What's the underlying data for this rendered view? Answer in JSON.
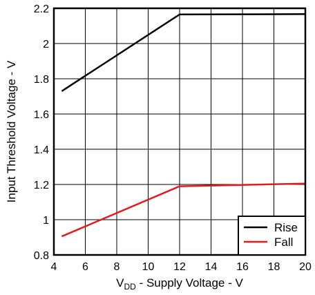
{
  "chart_data": {
    "type": "line",
    "title": "",
    "xlabel_main": "V",
    "xlabel_sub": "DD",
    "xlabel_rest": " - Supply Voltage - V",
    "ylabel": "Input Threshold Voltage -  V",
    "xlim": [
      4,
      20
    ],
    "ylim": [
      0.8,
      2.2
    ],
    "x_ticks": [
      4,
      6,
      8,
      10,
      12,
      14,
      16,
      18,
      20
    ],
    "y_ticks": [
      0.8,
      1,
      1.2,
      1.4,
      1.6,
      1.8,
      2,
      2.2
    ],
    "x_tick_labels": [
      "4",
      "6",
      "8",
      "10",
      "12",
      "14",
      "16",
      "18",
      "20"
    ],
    "y_tick_labels": [
      "0.8",
      "1",
      "1.2",
      "1.4",
      "1.6",
      "1.8",
      "2",
      "2.2"
    ],
    "grid": true,
    "legend_position": "bottom-right",
    "series": [
      {
        "name": "Rise",
        "color": "#000000",
        "x": [
          4.5,
          12,
          20
        ],
        "y": [
          1.73,
          2.165,
          2.167
        ]
      },
      {
        "name": "Fall",
        "color": "#e31a1c",
        "x": [
          4.5,
          12,
          20
        ],
        "y": [
          0.905,
          1.19,
          1.205
        ]
      }
    ]
  }
}
